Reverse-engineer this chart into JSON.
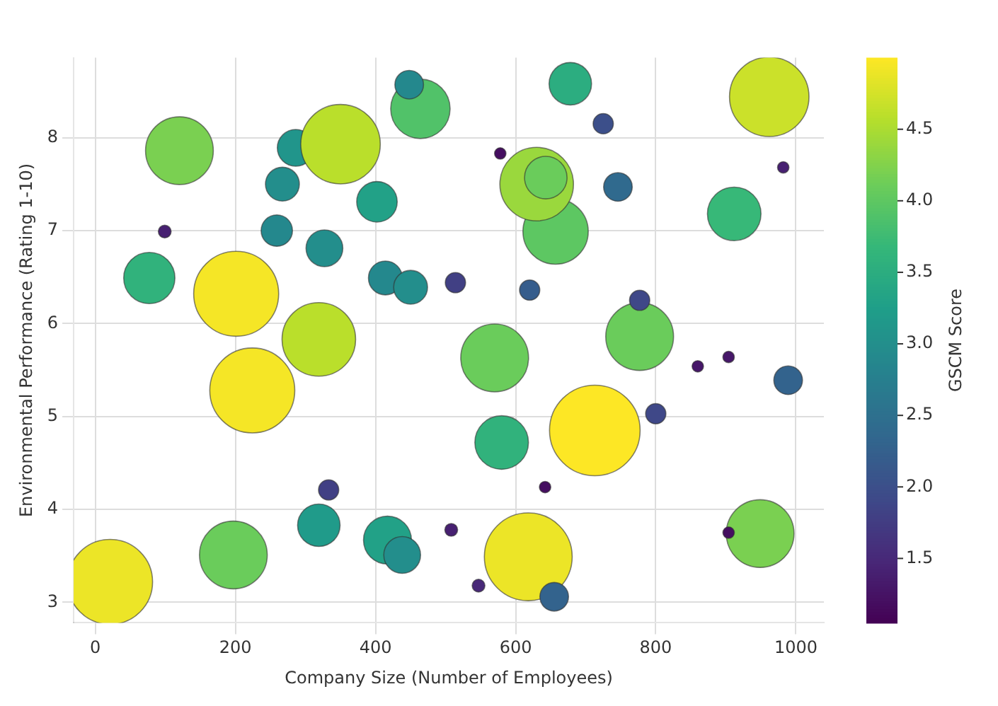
{
  "chart_data": {
    "type": "bubble",
    "xlabel": "Company Size (Number of Employees)",
    "ylabel": "Environmental Performance (Rating 1-10)",
    "clabel": "GSCM Score",
    "xlim": [
      -31,
      1040
    ],
    "ylim": [
      2.78,
      8.86
    ],
    "xticks": [
      0,
      200,
      400,
      600,
      800,
      1000
    ],
    "yticks": [
      3,
      4,
      5,
      6,
      7,
      8
    ],
    "clim": [
      1.05,
      5.0
    ],
    "cticks": [
      1.5,
      {
        "value": 2,
        "label": "2.0"
      },
      2.5,
      {
        "value": 3,
        "label": "3.0"
      },
      3.5,
      {
        "value": 4,
        "label": "4.0"
      },
      4.5
    ],
    "grid": true,
    "legend": false,
    "series": [
      {
        "x": [
          21,
          197,
          319,
          333,
          417,
          438,
          508,
          547,
          618,
          655,
          642,
          580,
          713,
          800,
          949,
          904,
          989,
          860,
          904,
          777,
          777,
          570,
          620,
          514,
          657,
          630,
          643,
          578,
          746,
          912,
          982,
          962,
          725,
          678,
          464,
          448,
          120,
          286,
          350,
          267,
          402,
          99,
          259,
          327,
          77,
          201,
          414,
          450,
          319,
          224
        ],
        "values": [
          3.22,
          3.51,
          3.83,
          4.21,
          3.67,
          3.51,
          3.78,
          3.18,
          3.49,
          3.06,
          4.24,
          4.72,
          4.85,
          5.03,
          3.74,
          3.75,
          5.39,
          5.54,
          5.64,
          5.86,
          6.25,
          5.63,
          6.36,
          6.44,
          6.99,
          7.5,
          7.57,
          7.83,
          7.47,
          7.18,
          7.68,
          8.44,
          8.15,
          8.58,
          8.31,
          8.57,
          7.86,
          7.89,
          7.93,
          7.5,
          7.31,
          6.99,
          7.0,
          6.81,
          6.49,
          6.32,
          6.49,
          6.39,
          5.83,
          5.28
        ],
        "sizes": [
          0.88,
          0.56,
          0.22,
          0.05,
          0.28,
          0.165,
          0.02,
          0.02,
          0.94,
          0.1,
          0.016,
          0.35,
          1,
          0.05,
          0.56,
          0.016,
          0.1,
          0.016,
          0.016,
          0.56,
          0.05,
          0.56,
          0.05,
          0.05,
          0.52,
          0.66,
          0.22,
          0.016,
          0.1,
          0.35,
          0.016,
          0.77,
          0.05,
          0.22,
          0.43,
          0.1,
          0.56,
          0.165,
          0.77,
          0.14,
          0.2,
          0.02,
          0.12,
          0.165,
          0.32,
          0.88,
          0.14,
          0.14,
          0.66,
          0.88
        ],
        "cvalues": [
          4.9,
          4.1,
          3.2,
          1.8,
          3.3,
          3.0,
          1.4,
          1.5,
          4.9,
          2.3,
          1.2,
          3.6,
          5.0,
          1.9,
          4.2,
          1.2,
          2.3,
          1.3,
          1.3,
          4.1,
          1.9,
          4.1,
          2.2,
          1.8,
          4.0,
          4.4,
          4.1,
          1.2,
          2.4,
          3.7,
          1.4,
          4.7,
          2.0,
          3.5,
          3.9,
          2.9,
          4.2,
          3.1,
          4.6,
          3.0,
          3.3,
          1.4,
          2.9,
          3.0,
          3.6,
          4.95,
          2.9,
          3.0,
          4.6,
          4.95
        ]
      }
    ]
  }
}
